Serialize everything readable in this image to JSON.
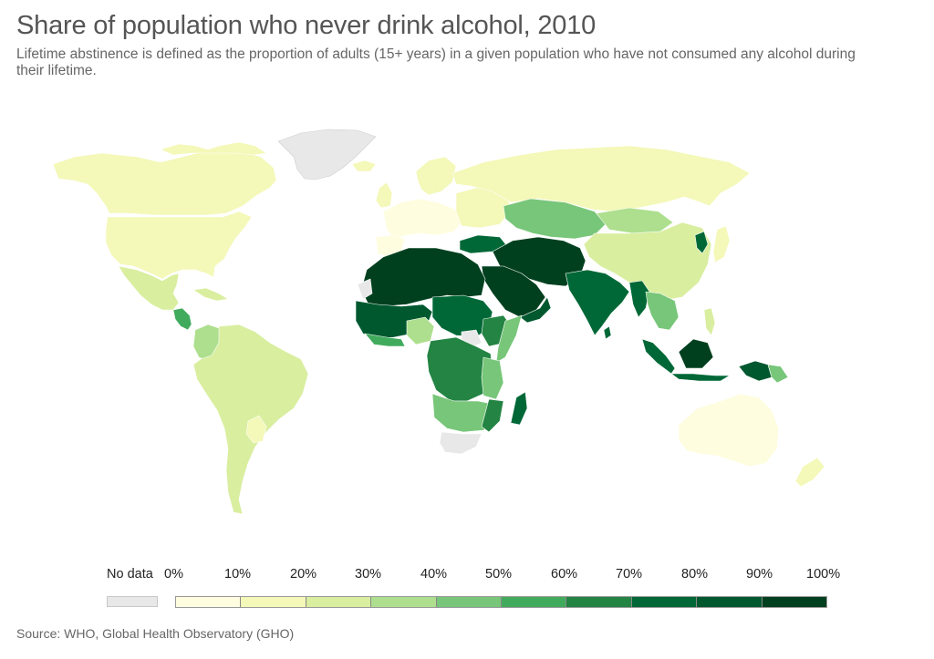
{
  "title": "Share of population who never drink alcohol, 2010",
  "subtitle": "Lifetime abstinence is defined as the proportion of adults (15+ years) in a given population who have not consumed any alcohol during their lifetime.",
  "legend": {
    "no_data_label": "No data",
    "no_data_color": "#e8e8e8",
    "ticks": [
      "0%",
      "10%",
      "20%",
      "30%",
      "40%",
      "50%",
      "60%",
      "70%",
      "80%",
      "90%",
      "100%"
    ],
    "bins": [
      {
        "range": [
          0,
          10
        ],
        "color": "#fefde0"
      },
      {
        "range": [
          10,
          20
        ],
        "color": "#f4f8b8"
      },
      {
        "range": [
          20,
          30
        ],
        "color": "#d9ee9f"
      },
      {
        "range": [
          30,
          40
        ],
        "color": "#addf8e"
      },
      {
        "range": [
          40,
          50
        ],
        "color": "#78c679"
      },
      {
        "range": [
          50,
          60
        ],
        "color": "#41ab5d"
      },
      {
        "range": [
          60,
          70
        ],
        "color": "#238443"
      },
      {
        "range": [
          70,
          80
        ],
        "color": "#006837"
      },
      {
        "range": [
          80,
          90
        ],
        "color": "#00582f"
      },
      {
        "range": [
          90,
          100
        ],
        "color": "#00401f"
      }
    ]
  },
  "source": "Source: WHO, Global Health Observatory (GHO)"
}
